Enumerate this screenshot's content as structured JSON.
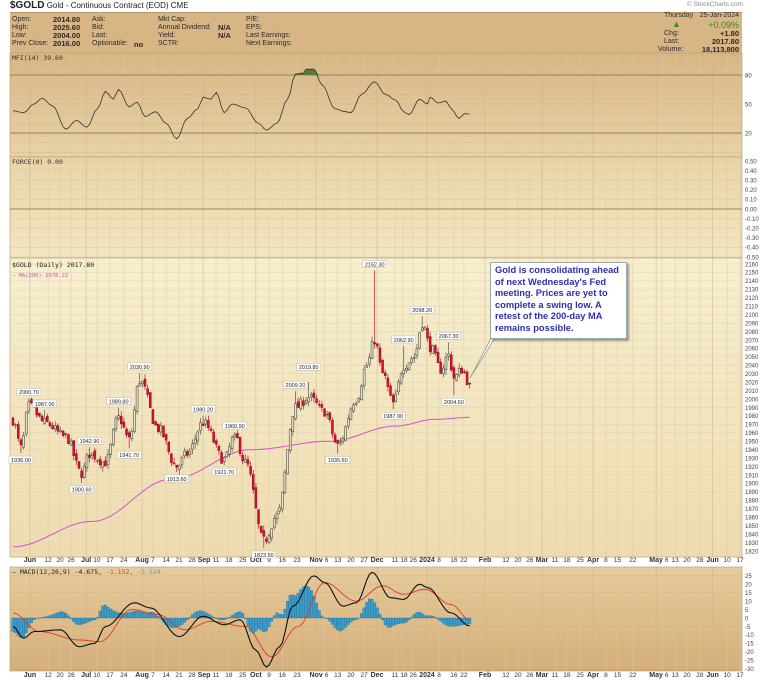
{
  "header": {
    "symbol": "$GOLD",
    "description": "Gold - Continuous Contract (EOD)",
    "exchange": "CME",
    "credit": "© StockCharts.com",
    "open_label": "Open:",
    "open": "2014.80",
    "high_label": "High:",
    "high": "2025.60",
    "low_label": "Low:",
    "low": "2004.00",
    "prev_close_label": "Prev Close:",
    "prev_close": "2016.00",
    "ask_label": "Ask:",
    "bid_label": "Bid:",
    "last_label_mid": "Last:",
    "optionable_label": "Optionable:",
    "optionable": "no",
    "mkt_cap_label": "Mkt Cap:",
    "annual_dividend_label": "Annual Dividend:",
    "annual_dividend": "N/A",
    "yield_label": "Yield:",
    "yield": "N/A",
    "sctr_label": "SCTR:",
    "pe_label": "P/E:",
    "eps_label": "EPS:",
    "last_earnings_label": "Last Earnings:",
    "next_earnings_label": "Next Earnings:",
    "date_day": "Thursday",
    "date": "25-Jan-2024",
    "pct_change": "+0.09%",
    "chg_label": "Chg:",
    "chg": "+1.80",
    "last_label": "Last:",
    "last": "2017.80",
    "volume_label": "Volume:",
    "volume": "18,113,800",
    "up_color": "#3a8a2a"
  },
  "annotation": {
    "text": "Gold is consolidating ahead of next Wednesday's Fed meeting. Prices are yet to complete a swing low. A retest of the 200-day MA remains possible."
  },
  "chart_data": {
    "type": "candlestick",
    "total_bars": 276,
    "x_labels": [
      {
        "t": "Jun",
        "bar": 6.4,
        "major": true
      },
      {
        "t": "12",
        "bar": 13.3
      },
      {
        "t": "20",
        "bar": 17.8
      },
      {
        "t": "26",
        "bar": 22
      },
      {
        "t": "Jul",
        "bar": 27.7,
        "major": true
      },
      {
        "t": "10",
        "bar": 31.8
      },
      {
        "t": "17",
        "bar": 36.7
      },
      {
        "t": "24",
        "bar": 42
      },
      {
        "t": "Aug",
        "bar": 48.9,
        "major": true
      },
      {
        "t": "7",
        "bar": 53
      },
      {
        "t": "14",
        "bar": 58
      },
      {
        "t": "21",
        "bar": 62.9
      },
      {
        "t": "28",
        "bar": 67.8
      },
      {
        "t": "Sep",
        "bar": 72,
        "major": true
      },
      {
        "t": "11",
        "bar": 76.9
      },
      {
        "t": "18",
        "bar": 81.8
      },
      {
        "t": "25",
        "bar": 87
      },
      {
        "t": "Oct",
        "bar": 92,
        "major": true
      },
      {
        "t": "9",
        "bar": 97
      },
      {
        "t": "16",
        "bar": 102
      },
      {
        "t": "23",
        "bar": 107.6
      },
      {
        "t": "Nov",
        "bar": 114.8,
        "major": true
      },
      {
        "t": "6",
        "bar": 118
      },
      {
        "t": "13",
        "bar": 123
      },
      {
        "t": "20",
        "bar": 128
      },
      {
        "t": "27",
        "bar": 133
      },
      {
        "t": "Dec",
        "bar": 137.9,
        "major": true
      },
      {
        "t": "11",
        "bar": 144.7
      },
      {
        "t": "18",
        "bar": 147.7
      },
      {
        "t": "26",
        "bar": 151.5
      },
      {
        "t": "2024",
        "bar": 156.8,
        "major": true
      },
      {
        "t": "8",
        "bar": 161.4
      },
      {
        "t": "16",
        "bar": 167
      },
      {
        "t": "22",
        "bar": 170.8
      },
      {
        "t": "Feb",
        "bar": 178.8,
        "major": true
      },
      {
        "t": "12",
        "bar": 186.7
      },
      {
        "t": "20",
        "bar": 191.3
      },
      {
        "t": "26",
        "bar": 195.8
      },
      {
        "t": "Mar",
        "bar": 200.4,
        "major": true
      },
      {
        "t": "11",
        "bar": 205.3
      },
      {
        "t": "18",
        "bar": 209.8
      },
      {
        "t": "25",
        "bar": 214.8
      },
      {
        "t": "Apr",
        "bar": 219.7,
        "major": true
      },
      {
        "t": "8",
        "bar": 224.6
      },
      {
        "t": "15",
        "bar": 229
      },
      {
        "t": "22",
        "bar": 234.8
      },
      {
        "t": "May",
        "bar": 243.6,
        "major": true
      },
      {
        "t": "6",
        "bar": 245.8
      },
      {
        "t": "13",
        "bar": 250.8
      },
      {
        "t": "20",
        "bar": 255.3
      },
      {
        "t": "28",
        "bar": 260.2
      },
      {
        "t": "Jun",
        "bar": 265,
        "major": true
      },
      {
        "t": "10",
        "bar": 270.5
      },
      {
        "t": "17",
        "bar": 275.4
      }
    ],
    "price": {
      "legend": "$GOLD (Daily) 2017.80",
      "ylim": [
        1810,
        2165
      ],
      "ticks": [
        1820,
        1830,
        1840,
        1850,
        1860,
        1870,
        1880,
        1890,
        1900,
        1910,
        1920,
        1930,
        1940,
        1950,
        1960,
        1970,
        1980,
        1990,
        2000,
        2010,
        2020,
        2030,
        2040,
        2050,
        2060,
        2070,
        2080,
        2090,
        2100,
        2110,
        2120,
        2130,
        2140,
        2150,
        2160
      ],
      "up_color": "#222222",
      "down_color": "#d0142c",
      "close_anchors": [
        [
          0,
          1975
        ],
        [
          3,
          1942
        ],
        [
          6,
          1992
        ],
        [
          12,
          1972
        ],
        [
          20,
          1955
        ],
        [
          26,
          1912
        ],
        [
          29,
          1935
        ],
        [
          35,
          1925
        ],
        [
          40,
          1978
        ],
        [
          44,
          1952
        ],
        [
          48,
          2022
        ],
        [
          55,
          1965
        ],
        [
          62,
          1920
        ],
        [
          66,
          1935
        ],
        [
          72,
          1972
        ],
        [
          80,
          1928
        ],
        [
          84,
          1956
        ],
        [
          88,
          1925
        ],
        [
          95,
          1832
        ],
        [
          100,
          1862
        ],
        [
          107,
          1990
        ],
        [
          112,
          2002
        ],
        [
          118,
          1985
        ],
        [
          123,
          1945
        ],
        [
          130,
          2000
        ],
        [
          134,
          2040
        ],
        [
          137,
          2070
        ],
        [
          140,
          2030
        ],
        [
          144,
          1995
        ],
        [
          148,
          2040
        ],
        [
          152,
          2050
        ],
        [
          155,
          2090
        ],
        [
          158,
          2062
        ],
        [
          162,
          2035
        ],
        [
          165,
          2052
        ],
        [
          167,
          2025
        ],
        [
          170,
          2035
        ],
        [
          173,
          2017.8
        ]
      ],
      "swing_points": [
        {
          "bar": 6,
          "value": 2000.7,
          "label": "2000.70",
          "type": "high"
        },
        {
          "bar": 3,
          "value": 1936.0,
          "label": "1936.00",
          "type": "low"
        },
        {
          "bar": 12,
          "value": 1987.0,
          "label": "1987.00",
          "type": "high"
        },
        {
          "bar": 29,
          "value": 1942.9,
          "label": "1942.90",
          "type": "high"
        },
        {
          "bar": 26,
          "value": 1900.6,
          "label": "1900.60",
          "type": "low"
        },
        {
          "bar": 40,
          "value": 1989.8,
          "label": "1989.80",
          "type": "high"
        },
        {
          "bar": 44,
          "value": 1941.7,
          "label": "1941.70",
          "type": "low"
        },
        {
          "bar": 48,
          "value": 2030.9,
          "label": "2030.90",
          "type": "high"
        },
        {
          "bar": 62,
          "value": 1913.6,
          "label": "1913.60",
          "type": "low"
        },
        {
          "bar": 72,
          "value": 1980.2,
          "label": "1980.20",
          "type": "high"
        },
        {
          "bar": 80,
          "value": 1921.7,
          "label": "1921.70",
          "type": "low"
        },
        {
          "bar": 84,
          "value": 1960.9,
          "label": "1960.90",
          "type": "high"
        },
        {
          "bar": 95,
          "value": 1823.5,
          "label": "1823.50",
          "type": "low"
        },
        {
          "bar": 107,
          "value": 2009.2,
          "label": "2009.20",
          "type": "high"
        },
        {
          "bar": 112,
          "value": 2019.8,
          "label": "2019.80",
          "type": "high"
        },
        {
          "bar": 123,
          "value": 1935.6,
          "label": "1935.60",
          "type": "low"
        },
        {
          "bar": 137,
          "value": 2152.3,
          "label": "2152.30",
          "type": "high"
        },
        {
          "bar": 144,
          "value": 1987.9,
          "label": "1987.90",
          "type": "low"
        },
        {
          "bar": 148,
          "value": 2062.9,
          "label": "2062.90",
          "type": "high"
        },
        {
          "bar": 155,
          "value": 2098.2,
          "label": "2098.20",
          "type": "high"
        },
        {
          "bar": 165,
          "value": 2067.3,
          "label": "2067.30",
          "type": "high"
        },
        {
          "bar": 167,
          "value": 2004.6,
          "label": "2004.60",
          "type": "low"
        }
      ]
    },
    "ma200": {
      "legend": "MA(200) 1978.22",
      "color": "#d84fd0",
      "anchors": [
        [
          0,
          1825
        ],
        [
          30,
          1855
        ],
        [
          60,
          1905
        ],
        [
          90,
          1940
        ],
        [
          120,
          1950
        ],
        [
          145,
          1968
        ],
        [
          160,
          1976
        ],
        [
          173,
          1978.22
        ]
      ]
    },
    "mfi": {
      "legend": "MFI(14) 39.60",
      "ylim": [
        -5,
        103
      ],
      "ticks": [
        20,
        50,
        80
      ],
      "overbought": 80,
      "oversold": 20,
      "fill_color": "#5a7a3a",
      "anchors": [
        [
          0,
          43
        ],
        [
          4,
          41
        ],
        [
          8,
          50
        ],
        [
          11,
          56
        ],
        [
          15,
          48
        ],
        [
          20,
          24
        ],
        [
          24,
          33
        ],
        [
          28,
          26
        ],
        [
          32,
          45
        ],
        [
          35,
          63
        ],
        [
          38,
          55
        ],
        [
          40,
          65
        ],
        [
          44,
          47
        ],
        [
          47,
          52
        ],
        [
          50,
          37
        ],
        [
          54,
          42
        ],
        [
          58,
          30
        ],
        [
          62,
          14
        ],
        [
          66,
          35
        ],
        [
          70,
          45
        ],
        [
          72,
          57
        ],
        [
          75,
          55
        ],
        [
          77,
          62
        ],
        [
          80,
          41
        ],
        [
          83,
          50
        ],
        [
          88,
          46
        ],
        [
          93,
          30
        ],
        [
          96,
          23
        ],
        [
          100,
          30
        ],
        [
          104,
          55
        ],
        [
          107,
          81
        ],
        [
          110,
          82
        ],
        [
          111,
          86
        ],
        [
          114,
          86
        ],
        [
          117,
          70
        ],
        [
          122,
          45
        ],
        [
          126,
          42
        ],
        [
          128,
          41
        ],
        [
          132,
          60
        ],
        [
          137,
          73
        ],
        [
          141,
          60
        ],
        [
          145,
          54
        ],
        [
          148,
          42
        ],
        [
          150,
          39
        ],
        [
          154,
          55
        ],
        [
          157,
          50
        ],
        [
          158,
          57
        ],
        [
          161,
          51
        ],
        [
          164,
          53
        ],
        [
          166,
          45
        ],
        [
          169,
          35
        ],
        [
          171,
          40
        ],
        [
          173,
          39.6
        ]
      ]
    },
    "force": {
      "legend": "FORCE(0) 0.00",
      "ylim": [
        -0.55,
        0.55
      ],
      "ticks": [
        -0.5,
        -0.4,
        -0.3,
        -0.2,
        -0.1,
        0,
        0.1,
        0.2,
        0.3,
        0.4,
        0.5
      ],
      "tick_labels": [
        "-0.50",
        "-0.40",
        "-0.30",
        "-0.20",
        "-0.10",
        "0.00",
        "0.10",
        "0.20",
        "0.30",
        "0.40",
        "0.50"
      ]
    },
    "macd": {
      "legend_name": "MACD(12,26,9)",
      "macd_value": "-4.675,",
      "signal_value": "-1.152,",
      "hist_value": "-3.524",
      "ylim": [
        -32,
        28
      ],
      "ticks": [
        -30,
        -25,
        -20,
        -15,
        -10,
        -5,
        0,
        5,
        10,
        15,
        20,
        25
      ],
      "macd_color": "#111111",
      "signal_color": "#e03a22",
      "hist_color": "#3a9ccb",
      "macd_anchors": [
        [
          0,
          -5
        ],
        [
          4,
          -12
        ],
        [
          8,
          -8
        ],
        [
          18,
          -7
        ],
        [
          25,
          -17
        ],
        [
          31,
          -15
        ],
        [
          35,
          -5
        ],
        [
          46,
          9
        ],
        [
          52,
          6
        ],
        [
          63,
          -11
        ],
        [
          72,
          1
        ],
        [
          80,
          -4
        ],
        [
          86,
          -1
        ],
        [
          92,
          -19
        ],
        [
          96,
          -29
        ],
        [
          101,
          -17
        ],
        [
          106,
          7
        ],
        [
          114,
          25
        ],
        [
          118,
          21
        ],
        [
          125,
          7
        ],
        [
          130,
          9
        ],
        [
          136,
          27
        ],
        [
          143,
          12
        ],
        [
          148,
          11
        ],
        [
          154,
          20
        ],
        [
          157,
          18
        ],
        [
          166,
          3
        ],
        [
          173,
          -4.675
        ]
      ],
      "signal_anchors": [
        [
          0,
          3
        ],
        [
          10,
          -8
        ],
        [
          25,
          -13
        ],
        [
          33,
          -14
        ],
        [
          45,
          5
        ],
        [
          55,
          2
        ],
        [
          65,
          -7
        ],
        [
          75,
          -2
        ],
        [
          88,
          -5
        ],
        [
          98,
          -23
        ],
        [
          108,
          -5
        ],
        [
          118,
          21
        ],
        [
          130,
          10
        ],
        [
          140,
          19
        ],
        [
          148,
          14
        ],
        [
          156,
          17
        ],
        [
          166,
          8
        ],
        [
          173,
          -1.152
        ]
      ]
    }
  }
}
